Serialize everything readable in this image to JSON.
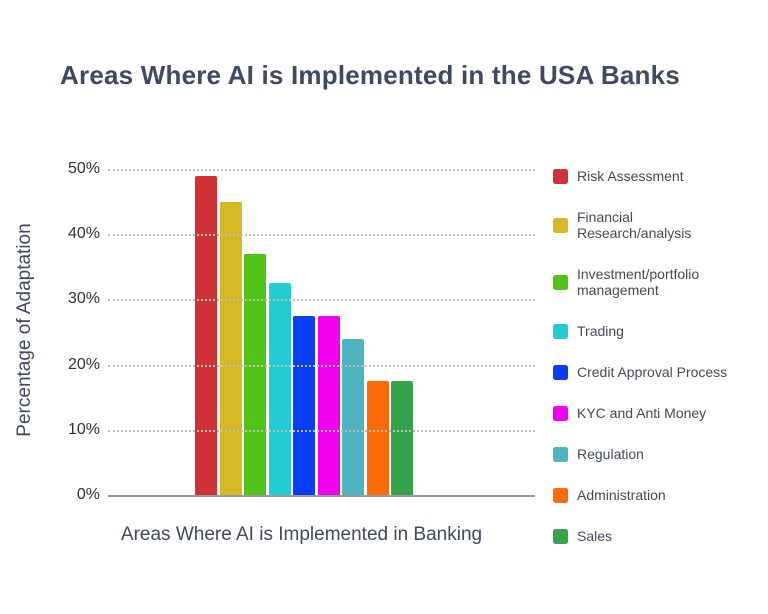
{
  "title": "Areas Where AI is Implemented in the USA Banks",
  "chart_data": {
    "type": "bar",
    "title": "Areas Where AI is Implemented in the USA Banks",
    "xlabel": "Areas Where AI is Implemented in Banking",
    "ylabel": "Percentage of Adaptation",
    "ylim": [
      0,
      50
    ],
    "ytick_step": 10,
    "ytick_labels": [
      "0%",
      "10%",
      "20%",
      "30%",
      "40%",
      "50%"
    ],
    "grid": "horizontal-dotted",
    "legend_position": "right",
    "categories": [
      "Risk Assessment",
      "Financial Research/analysis",
      "Investment/portfolio management",
      "Trading",
      "Credit Approval Process",
      "KYC and Anti Money",
      "Regulation",
      "Administration",
      "Sales"
    ],
    "values": [
      49,
      45,
      37,
      32.5,
      27.5,
      27.5,
      24,
      17.5,
      17.5
    ],
    "colors": [
      "#cf3236",
      "#d4b826",
      "#50c414",
      "#22cdd2",
      "#0a3ef5",
      "#ee00ee",
      "#4fb4c0",
      "#fb6c09",
      "#35a34b"
    ],
    "legend_lines": [
      [
        "Risk Assessment"
      ],
      [
        "Financial",
        "Research/analysis"
      ],
      [
        "Investment/portfolio",
        "management"
      ],
      [
        "Trading"
      ],
      [
        "Credit Approval Process"
      ],
      [
        "KYC and Anti Money"
      ],
      [
        "Regulation"
      ],
      [
        "Administration"
      ],
      [
        "Sales"
      ]
    ]
  },
  "colors": {
    "background": "#ffffff",
    "title_text": "#3e4a61",
    "axis_title_text": "#3e4a61",
    "tick_text": "#2d3238",
    "legend_text": "#424c59",
    "gridline": "#bdbdbd",
    "axis_line": "#9b9b9b"
  }
}
